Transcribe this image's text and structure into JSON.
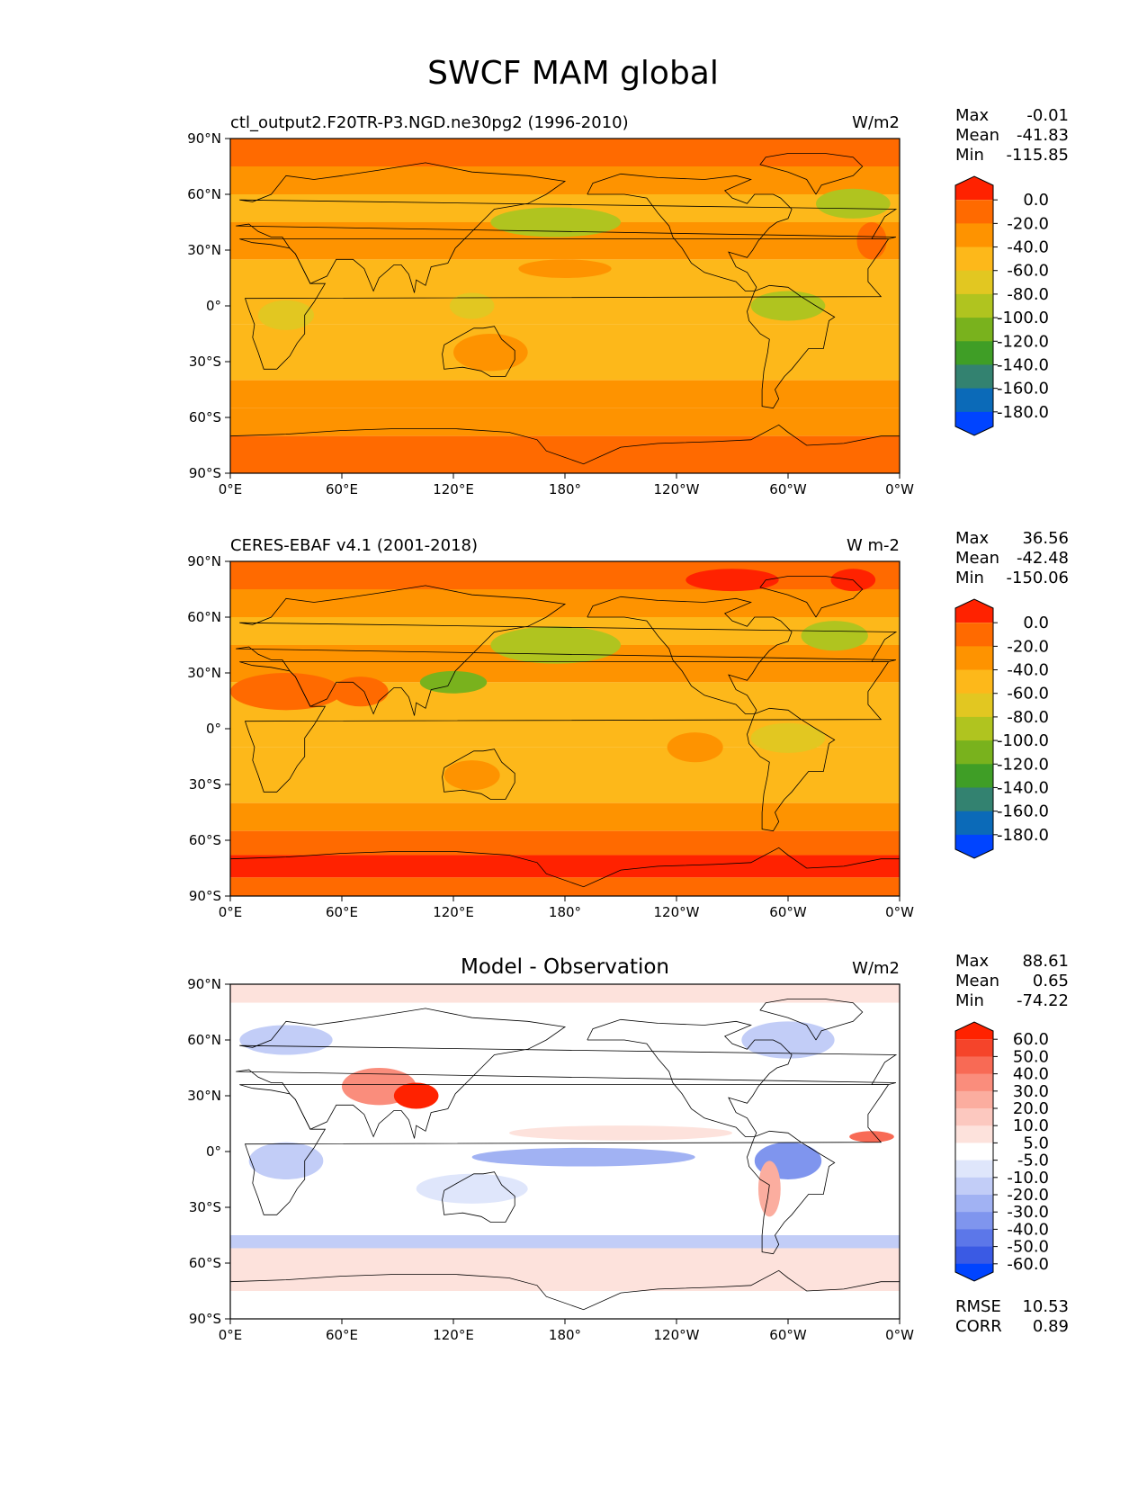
{
  "figure": {
    "title": "SWCF MAM global"
  },
  "chart_data": [
    {
      "type": "heatmap",
      "title": "ctl_output2.F20TR-P3.NGD.ne30pg2 (1996-2010)",
      "units": "W/m2",
      "x_ticks": [
        "0°E",
        "60°E",
        "120°E",
        "180°",
        "120°W",
        "60°W",
        "0°W"
      ],
      "y_ticks": [
        "90°N",
        "60°N",
        "30°N",
        "0°",
        "30°S",
        "60°S",
        "90°S"
      ],
      "xlim": [
        0,
        360
      ],
      "ylim": [
        -90,
        90
      ],
      "stats": {
        "max_label": "Max",
        "max": "-0.01",
        "mean_label": "Mean",
        "mean": "-41.83",
        "min_label": "Min",
        "min": "-115.85"
      },
      "colorbar": {
        "levels": [
          "0.0",
          "-20.0",
          "-40.0",
          "-60.0",
          "-80.0",
          "-100.0",
          "-120.0",
          "-140.0",
          "-160.0",
          "-180.0"
        ],
        "colors": [
          "#ff2200",
          "#ff6a00",
          "#fe9300",
          "#fdb81a",
          "#e2c721",
          "#b0c41f",
          "#79b21d",
          "#3f9e26",
          "#338270",
          "#0b6ab8",
          "#0044ff"
        ]
      }
    },
    {
      "type": "heatmap",
      "title": "CERES-EBAF v4.1 (2001-2018)",
      "units": "W m-2",
      "x_ticks": [
        "0°E",
        "60°E",
        "120°E",
        "180°",
        "120°W",
        "60°W",
        "0°W"
      ],
      "y_ticks": [
        "90°N",
        "60°N",
        "30°N",
        "0°",
        "30°S",
        "60°S",
        "90°S"
      ],
      "xlim": [
        0,
        360
      ],
      "ylim": [
        -90,
        90
      ],
      "stats": {
        "max_label": "Max",
        "max": "36.56",
        "mean_label": "Mean",
        "mean": "-42.48",
        "min_label": "Min",
        "min": "-150.06"
      },
      "colorbar": {
        "levels": [
          "0.0",
          "-20.0",
          "-40.0",
          "-60.0",
          "-80.0",
          "-100.0",
          "-120.0",
          "-140.0",
          "-160.0",
          "-180.0"
        ],
        "colors": [
          "#ff2200",
          "#ff6a00",
          "#fe9300",
          "#fdb81a",
          "#e2c721",
          "#b0c41f",
          "#79b21d",
          "#3f9e26",
          "#338270",
          "#0b6ab8",
          "#0044ff"
        ]
      }
    },
    {
      "type": "heatmap",
      "title": "Model - Observation",
      "units": "W/m2",
      "x_ticks": [
        "0°E",
        "60°E",
        "120°E",
        "180°",
        "120°W",
        "60°W",
        "0°W"
      ],
      "y_ticks": [
        "90°N",
        "60°N",
        "30°N",
        "0°",
        "30°S",
        "60°S",
        "90°S"
      ],
      "xlim": [
        0,
        360
      ],
      "ylim": [
        -90,
        90
      ],
      "stats": {
        "max_label": "Max",
        "max": "88.61",
        "mean_label": "Mean",
        "mean": "0.65",
        "min_label": "Min",
        "min": "-74.22"
      },
      "extra_stats": {
        "rmse_label": "RMSE",
        "rmse": "10.53",
        "corr_label": "CORR",
        "corr": "0.89"
      },
      "colorbar": {
        "levels": [
          "60.0",
          "50.0",
          "40.0",
          "30.0",
          "20.0",
          "10.0",
          "5.0",
          "-5.0",
          "-10.0",
          "-20.0",
          "-30.0",
          "-40.0",
          "-50.0",
          "-60.0"
        ],
        "colors": [
          "#ff2200",
          "#f5442a",
          "#f86a55",
          "#fa8d7c",
          "#fbad9f",
          "#fcc8bf",
          "#fde2dc",
          "#ffffff",
          "#dfe6fb",
          "#c2cdf7",
          "#a1b2f3",
          "#7f95ee",
          "#5c77e9",
          "#3a5ae4",
          "#0044ff"
        ]
      }
    }
  ]
}
